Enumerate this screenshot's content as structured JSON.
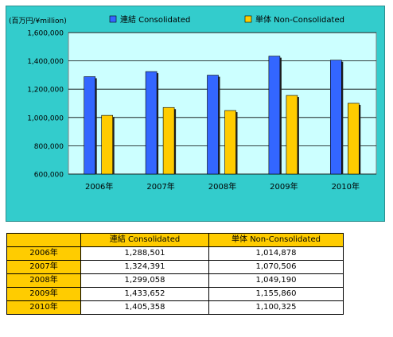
{
  "chart_data": {
    "type": "bar",
    "ylabel": "(百万円/¥million)",
    "categories": [
      "2006年",
      "2007年",
      "2008年",
      "2009年",
      "2010年"
    ],
    "series": [
      {
        "name": "連結 Consolidated",
        "values": [
          1288501,
          1324391,
          1299058,
          1433652,
          1405358
        ],
        "color": "#3366ff"
      },
      {
        "name": "単体 Non-Consolidated",
        "values": [
          1014878,
          1070506,
          1049190,
          1155860,
          1100325
        ],
        "color": "#ffcc00"
      }
    ],
    "ylim": [
      600000,
      1600000
    ],
    "yticks": [
      "600,000",
      "800,000",
      "1,000,000",
      "1,200,000",
      "1,400,000",
      "1,600,000"
    ],
    "grid": true,
    "legend": "top"
  },
  "colors": {
    "panel_bg": "#33cccc",
    "plot_bg": "#ccffff",
    "table_header": "#ffcc00"
  },
  "table": {
    "headers": [
      "",
      "連結 Consolidated",
      "単体 Non-Consolidated"
    ],
    "rows": [
      {
        "year": "2006年",
        "consolidated": "1,288,501",
        "non_consolidated": "1,014,878"
      },
      {
        "year": "2007年",
        "consolidated": "1,324,391",
        "non_consolidated": "1,070,506"
      },
      {
        "year": "2008年",
        "consolidated": "1,299,058",
        "non_consolidated": "1,049,190"
      },
      {
        "year": "2009年",
        "consolidated": "1,433,652",
        "non_consolidated": "1,155,860"
      },
      {
        "year": "2010年",
        "consolidated": "1,405,358",
        "non_consolidated": "1,100,325"
      }
    ]
  }
}
